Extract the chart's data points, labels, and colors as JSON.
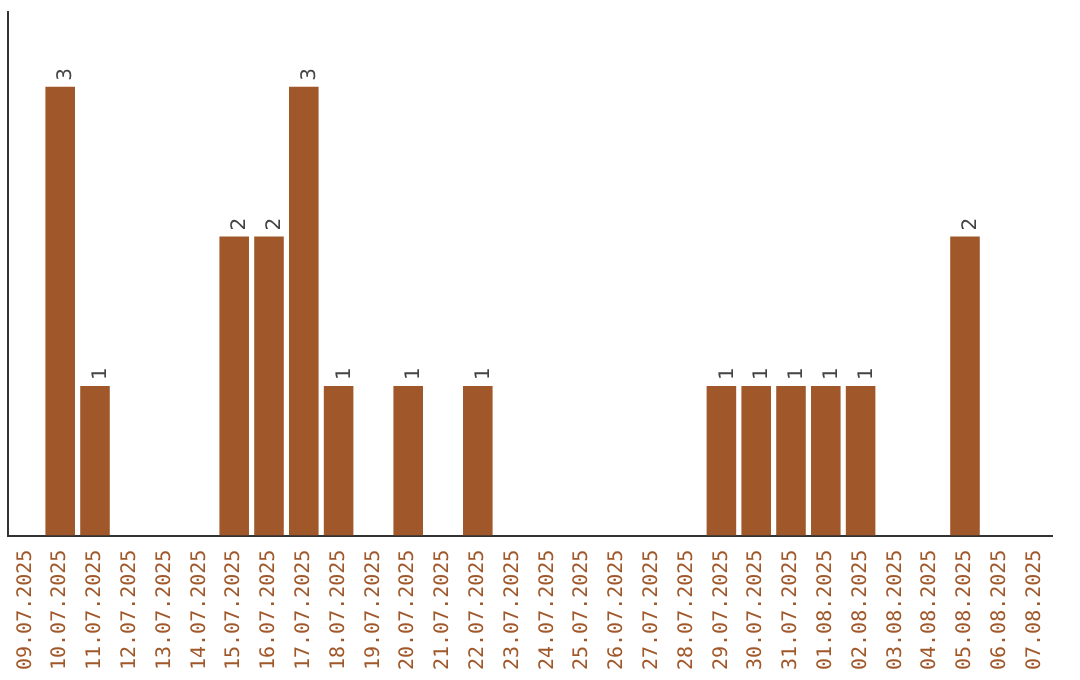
{
  "chart_data": {
    "type": "bar",
    "categories": [
      "09.07.2025",
      "10.07.2025",
      "11.07.2025",
      "12.07.2025",
      "13.07.2025",
      "14.07.2025",
      "15.07.2025",
      "16.07.2025",
      "17.07.2025",
      "18.07.2025",
      "19.07.2025",
      "20.07.2025",
      "21.07.2025",
      "22.07.2025",
      "23.07.2025",
      "24.07.2025",
      "25.07.2025",
      "26.07.2025",
      "27.07.2025",
      "28.07.2025",
      "29.07.2025",
      "30.07.2025",
      "31.07.2025",
      "01.08.2025",
      "02.08.2025",
      "03.08.2025",
      "04.08.2025",
      "05.08.2025",
      "06.08.2025",
      "07.08.2025"
    ],
    "values": [
      0,
      3,
      1,
      0,
      0,
      0,
      2,
      2,
      3,
      1,
      0,
      1,
      0,
      1,
      0,
      0,
      0,
      0,
      0,
      0,
      1,
      1,
      1,
      1,
      1,
      0,
      0,
      2,
      0,
      0
    ],
    "value_labels": [
      null,
      "3",
      "1",
      null,
      null,
      null,
      "2",
      "2",
      "3",
      "1",
      null,
      "1",
      null,
      "1",
      null,
      null,
      null,
      null,
      null,
      null,
      "1",
      "1",
      "1",
      "1",
      "1",
      null,
      null,
      "2",
      null,
      null
    ],
    "color": "#a0582a",
    "grid": false,
    "legend": false,
    "tick_labels": "x"
  }
}
